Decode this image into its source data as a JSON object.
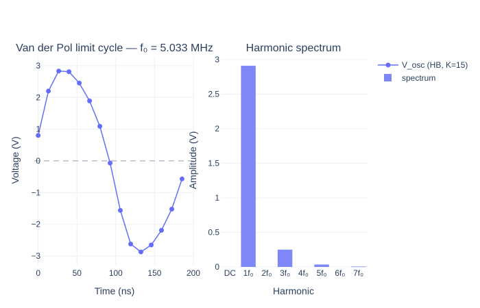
{
  "chart_data": [
    {
      "type": "line",
      "title": "Van der Pol limit cycle — f₀ = 5.033 MHz",
      "xlabel": "Time (ns)",
      "ylabel": "Voltage (V)",
      "xlim": [
        -5,
        200
      ],
      "ylim": [
        -3.3,
        3.3
      ],
      "x_ticks": [
        0,
        50,
        100,
        150,
        200
      ],
      "x_tick_labels": [
        "0",
        "50",
        "100",
        "150",
        "200"
      ],
      "y_ticks": [
        -3,
        -2,
        -1,
        0,
        1,
        2,
        3
      ],
      "y_tick_labels": [
        "−3",
        "−2",
        "−1",
        "0",
        "1",
        "2",
        "3"
      ],
      "grid": true,
      "reference_line": {
        "y": 0,
        "style": "dashed"
      },
      "series": [
        {
          "name": "V_osc (HB, K=15)",
          "mode": "lines+markers",
          "color": "#636efa",
          "x": [
            0,
            13.2,
            26.5,
            39.7,
            53.0,
            66.2,
            79.5,
            92.7,
            105.9,
            119.2,
            132.4,
            145.7,
            158.9,
            172.2,
            185.4
          ],
          "y": [
            0.8,
            2.2,
            2.83,
            2.81,
            2.45,
            1.89,
            1.09,
            -0.07,
            -1.56,
            -2.62,
            -2.87,
            -2.65,
            -2.19,
            -1.52,
            -0.57
          ]
        }
      ]
    },
    {
      "type": "bar",
      "title": "Harmonic spectrum",
      "xlabel": "Harmonic",
      "ylabel": "Amplitude (V)",
      "ylim": [
        0,
        3
      ],
      "y_ticks": [
        0,
        0.5,
        1,
        1.5,
        2,
        2.5,
        3
      ],
      "y_tick_labels": [
        "0",
        "0.5",
        "1",
        "1.5",
        "2",
        "2.5",
        "3"
      ],
      "grid": true,
      "categories": [
        "DC",
        "1f₀",
        "2f₀",
        "3f₀",
        "4f₀",
        "5f₀",
        "6f₀",
        "7f₀"
      ],
      "series": [
        {
          "name": "spectrum",
          "color": "#7f86f8",
          "values": [
            0.0,
            2.91,
            0.0,
            0.25,
            0.0,
            0.035,
            0.0,
            0.006
          ]
        }
      ]
    }
  ],
  "legend": {
    "position": "top-right",
    "items": [
      {
        "label": "V_osc (HB, K=15)",
        "symbol": "line-marker",
        "color": "#636efa"
      },
      {
        "label": "spectrum",
        "symbol": "square",
        "color": "#7f86f8"
      }
    ]
  }
}
